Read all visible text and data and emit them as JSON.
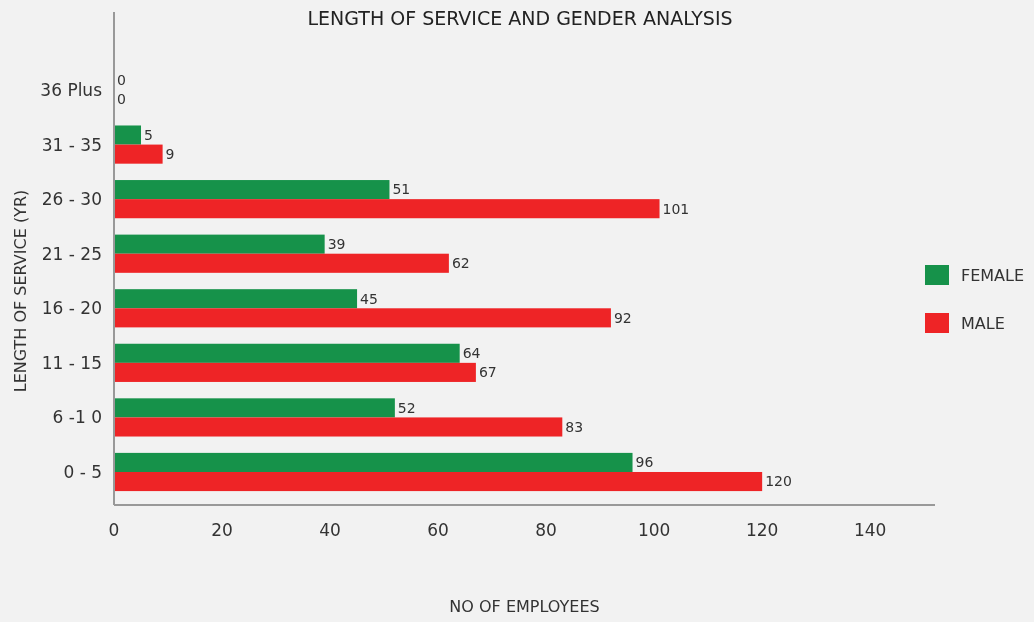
{
  "chart_data": {
    "type": "bar",
    "orientation": "horizontal",
    "title": "LENGTH OF SERVICE AND GENDER ANALYSIS",
    "xlabel": "NO OF EMPLOYEES",
    "ylabel": "LENGTH OF SERVICE (YR)",
    "categories": [
      "36 Plus",
      "31 - 35",
      "26 - 30",
      "21 - 25",
      "16 - 20",
      "11 - 15",
      "6 -1 0",
      "0 - 5"
    ],
    "series": [
      {
        "name": "FEMALE",
        "color": "#16924a",
        "values": [
          0,
          5,
          51,
          39,
          45,
          64,
          52,
          96
        ]
      },
      {
        "name": "MALE",
        "color": "#ee2426",
        "values": [
          0,
          9,
          101,
          62,
          92,
          67,
          83,
          120
        ]
      }
    ],
    "xlim": [
      0,
      152
    ],
    "xticks": [
      0,
      20,
      40,
      60,
      80,
      100,
      120,
      140
    ],
    "grid": false,
    "legend": "right",
    "data_labels": true
  }
}
